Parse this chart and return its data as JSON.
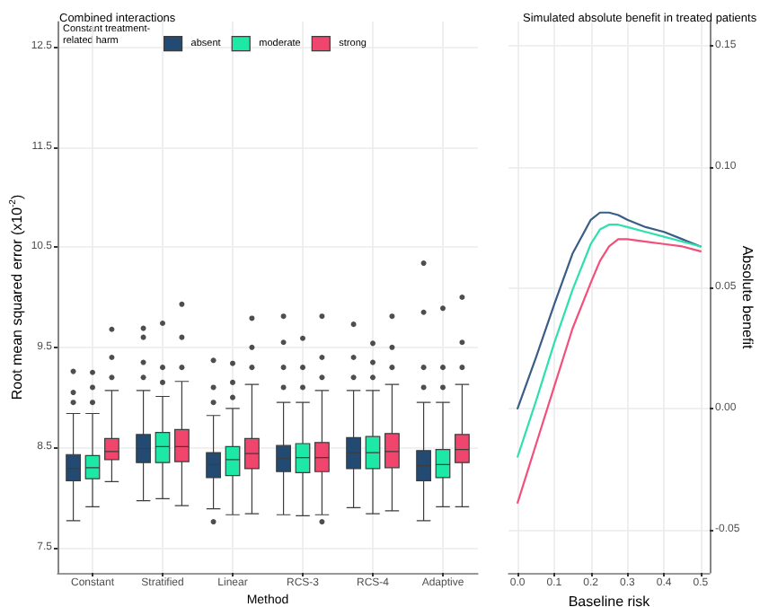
{
  "chart_data": [
    {
      "type": "box",
      "title": "Combined interactions",
      "xlabel": "Method",
      "ylabel": "Root mean squared error (x10$^{-2}$)",
      "legend_title": "Constant treatment-related harm",
      "legend": "top left",
      "grid": true,
      "categories": [
        "Constant",
        "Stratified",
        "Linear",
        "RCS-3",
        "RCS-4",
        "Adaptive"
      ],
      "ylim": [
        7.25,
        12.75
      ],
      "yticks": [
        7.5,
        8.5,
        9.5,
        10.5,
        11.5,
        12.5
      ],
      "series": [
        {
          "name": "absent",
          "color": "#234a73",
          "boxes": [
            {
              "low": 7.77,
              "q1": 8.17,
              "median": 8.29,
              "q3": 8.43,
              "high": 8.84,
              "outliers": [
                8.95,
                9.05,
                9.26
              ]
            },
            {
              "low": 7.97,
              "q1": 8.35,
              "median": 8.49,
              "q3": 8.63,
              "high": 9.07,
              "outliers": [
                9.2,
                9.35,
                9.6,
                9.69
              ]
            },
            {
              "low": 7.89,
              "q1": 8.2,
              "median": 8.33,
              "q3": 8.45,
              "high": 8.82,
              "outliers": [
                7.76,
                8.95,
                9.1,
                9.37
              ]
            },
            {
              "low": 7.83,
              "q1": 8.26,
              "median": 8.39,
              "q3": 8.52,
              "high": 8.95,
              "outliers": [
                9.1,
                9.3,
                9.55,
                9.81
              ]
            },
            {
              "low": 7.9,
              "q1": 8.29,
              "median": 8.45,
              "q3": 8.6,
              "high": 9.07,
              "outliers": [
                9.2,
                9.4,
                9.73
              ]
            },
            {
              "low": 7.77,
              "q1": 8.17,
              "median": 8.32,
              "q3": 8.47,
              "high": 8.95,
              "outliers": [
                9.1,
                9.3,
                9.85,
                10.34
              ]
            }
          ]
        },
        {
          "name": "moderate",
          "color": "#1ee8a6",
          "boxes": [
            {
              "low": 7.91,
              "q1": 8.19,
              "median": 8.3,
              "q3": 8.42,
              "high": 8.84,
              "outliers": [
                8.95,
                9.1,
                9.25
              ]
            },
            {
              "low": 7.99,
              "q1": 8.35,
              "median": 8.51,
              "q3": 8.65,
              "high": 9.01,
              "outliers": [
                9.15,
                9.3,
                9.74
              ]
            },
            {
              "low": 7.83,
              "q1": 8.22,
              "median": 8.38,
              "q3": 8.51,
              "high": 8.89,
              "outliers": [
                9.0,
                9.15,
                9.34
              ]
            },
            {
              "low": 7.82,
              "q1": 8.25,
              "median": 8.4,
              "q3": 8.54,
              "high": 8.95,
              "outliers": [
                9.1,
                9.3,
                9.59
              ]
            },
            {
              "low": 7.84,
              "q1": 8.29,
              "median": 8.45,
              "q3": 8.61,
              "high": 9.07,
              "outliers": [
                9.2,
                9.35,
                9.54
              ]
            },
            {
              "low": 7.91,
              "q1": 8.2,
              "median": 8.33,
              "q3": 8.48,
              "high": 8.95,
              "outliers": [
                9.1,
                9.3,
                9.89
              ]
            }
          ]
        },
        {
          "name": "strong",
          "color": "#f0456d",
          "boxes": [
            {
              "low": 8.16,
              "q1": 8.38,
              "median": 8.46,
              "q3": 8.59,
              "high": 9.07,
              "outliers": [
                9.2,
                9.4,
                9.68
              ]
            },
            {
              "low": 7.92,
              "q1": 8.36,
              "median": 8.51,
              "q3": 8.68,
              "high": 9.16,
              "outliers": [
                9.3,
                9.6,
                9.93
              ]
            },
            {
              "low": 7.84,
              "q1": 8.29,
              "median": 8.44,
              "q3": 8.59,
              "high": 9.13,
              "outliers": [
                9.3,
                9.5,
                9.79
              ]
            },
            {
              "low": 7.83,
              "q1": 8.26,
              "median": 8.4,
              "q3": 8.55,
              "high": 9.07,
              "outliers": [
                7.76,
                9.2,
                9.4,
                9.81
              ]
            },
            {
              "low": 7.87,
              "q1": 8.3,
              "median": 8.46,
              "q3": 8.64,
              "high": 9.13,
              "outliers": [
                9.3,
                9.5,
                9.81
              ]
            },
            {
              "low": 7.91,
              "q1": 8.35,
              "median": 8.48,
              "q3": 8.63,
              "high": 9.13,
              "outliers": [
                9.3,
                9.55,
                10.0
              ]
            }
          ]
        }
      ]
    },
    {
      "type": "line",
      "title": "Simulated absolute benefit in treated patients",
      "xlabel": "Baseline risk",
      "ylabel": "Absolute benefit",
      "grid": true,
      "xlim": [
        -0.025,
        0.525
      ],
      "xticks": [
        {
          "value": 0,
          "label": "0.0"
        },
        {
          "value": 0.1,
          "label": "0.1"
        },
        {
          "value": 0.2,
          "label": "0.2"
        },
        {
          "value": 0.3,
          "label": "0.3"
        },
        {
          "value": 0.4,
          "label": "0.4"
        },
        {
          "value": 0.5,
          "label": "0.5"
        }
      ],
      "ylim": [
        -0.068,
        0.16
      ],
      "yticks": [
        {
          "value": -0.05,
          "label": "-0.05"
        },
        {
          "value": 0,
          "label": "0.00"
        },
        {
          "value": 0.05,
          "label": "0.05"
        },
        {
          "value": 0.1,
          "label": "0.10"
        },
        {
          "value": 0.15,
          "label": "0.15"
        }
      ],
      "x": [
        0,
        0.05,
        0.1,
        0.15,
        0.2,
        0.225,
        0.25,
        0.275,
        0.3,
        0.35,
        0.4,
        0.45,
        0.5
      ],
      "series": [
        {
          "color": "#3a5d88",
          "values": [
            0,
            0.021,
            0.043,
            0.064,
            0.078,
            0.081,
            0.081,
            0.08,
            0.078,
            0.075,
            0.073,
            0.07,
            0.067
          ]
        },
        {
          "color": "#2de0ae",
          "values": [
            -0.02,
            0.003,
            0.027,
            0.049,
            0.068,
            0.074,
            0.076,
            0.076,
            0.075,
            0.073,
            0.071,
            0.069,
            0.067
          ]
        },
        {
          "color": "#f0507a",
          "values": [
            -0.039,
            -0.015,
            0.009,
            0.033,
            0.052,
            0.061,
            0.067,
            0.07,
            0.07,
            0.069,
            0.068,
            0.067,
            0.065
          ]
        }
      ]
    }
  ]
}
